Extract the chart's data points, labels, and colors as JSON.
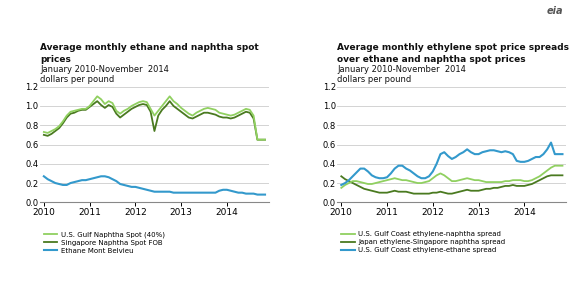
{
  "chart1": {
    "title1": "Average monthly ethane and naphtha spot",
    "title2": "prices",
    "subtitle": "January 2010-November  2014",
    "ylabel": "dollars per pound",
    "ylim": [
      0.0,
      1.2
    ],
    "yticks": [
      0.0,
      0.2,
      0.4,
      0.6,
      0.8,
      1.0,
      1.2
    ],
    "series": {
      "us_naphtha": {
        "label": "U.S. Gulf Naphtha Spot (40%)",
        "color": "#90d060",
        "lw": 1.3
      },
      "sing_naphtha": {
        "label": "Singapore Naphtha Spot FOB",
        "color": "#4a7a20",
        "lw": 1.3
      },
      "ethane": {
        "label": "Ethane Mont Belvieu",
        "color": "#3399cc",
        "lw": 1.5
      }
    }
  },
  "chart2": {
    "title1": "Average monthly ethylene spot price spreads",
    "title2": "over ethane and naphtha spot prices",
    "subtitle": "January 2010-November  2014",
    "ylabel": "dollars per pound",
    "ylim": [
      0.0,
      1.2
    ],
    "yticks": [
      0.0,
      0.2,
      0.4,
      0.6,
      0.8,
      1.0,
      1.2
    ],
    "series": {
      "us_naphtha_spread": {
        "label": "U.S. Gulf Coast ethylene-naphtha spread",
        "color": "#90d060",
        "lw": 1.3
      },
      "japan_spread": {
        "label": "Japan ethylene-Singapore naphtha spread",
        "color": "#4a7a20",
        "lw": 1.3
      },
      "us_ethane_spread": {
        "label": "U.S. Gulf Coast ethylene-ethane spread",
        "color": "#3399cc",
        "lw": 1.5
      }
    }
  },
  "background_color": "#ffffff",
  "grid_color": "#cccccc",
  "text_color": "#333333",
  "us_naph": [
    0.73,
    0.72,
    0.74,
    0.76,
    0.79,
    0.84,
    0.9,
    0.94,
    0.95,
    0.96,
    0.97,
    0.97,
    1.0,
    1.05,
    1.1,
    1.07,
    1.02,
    1.05,
    1.03,
    0.95,
    0.92,
    0.95,
    0.97,
    1.0,
    1.02,
    1.04,
    1.05,
    1.04,
    0.97,
    0.9,
    0.95,
    1.0,
    1.05,
    1.1,
    1.05,
    1.02,
    0.98,
    0.95,
    0.92,
    0.9,
    0.93,
    0.95,
    0.97,
    0.98,
    0.97,
    0.96,
    0.93,
    0.92,
    0.91,
    0.9,
    0.91,
    0.93,
    0.95,
    0.97,
    0.96,
    0.9,
    0.65,
    0.65,
    0.65
  ],
  "sing_naph": [
    0.7,
    0.69,
    0.71,
    0.74,
    0.77,
    0.82,
    0.88,
    0.92,
    0.93,
    0.95,
    0.96,
    0.96,
    0.99,
    1.02,
    1.05,
    1.01,
    0.98,
    1.01,
    0.99,
    0.92,
    0.88,
    0.91,
    0.94,
    0.97,
    0.99,
    1.01,
    1.02,
    1.01,
    0.94,
    0.74,
    0.9,
    0.96,
    1.0,
    1.05,
    1.0,
    0.97,
    0.94,
    0.91,
    0.88,
    0.87,
    0.89,
    0.91,
    0.93,
    0.93,
    0.92,
    0.91,
    0.89,
    0.88,
    0.88,
    0.87,
    0.88,
    0.9,
    0.92,
    0.94,
    0.93,
    0.87,
    0.65,
    0.65,
    0.65
  ],
  "ethane": [
    0.27,
    0.24,
    0.22,
    0.2,
    0.19,
    0.18,
    0.18,
    0.2,
    0.21,
    0.22,
    0.23,
    0.23,
    0.24,
    0.25,
    0.26,
    0.27,
    0.27,
    0.26,
    0.24,
    0.22,
    0.19,
    0.18,
    0.17,
    0.16,
    0.16,
    0.15,
    0.14,
    0.13,
    0.12,
    0.11,
    0.11,
    0.11,
    0.11,
    0.11,
    0.1,
    0.1,
    0.1,
    0.1,
    0.1,
    0.1,
    0.1,
    0.1,
    0.1,
    0.1,
    0.1,
    0.1,
    0.12,
    0.13,
    0.13,
    0.12,
    0.11,
    0.1,
    0.1,
    0.09,
    0.09,
    0.09,
    0.08,
    0.08,
    0.08
  ],
  "us_naph_sp": [
    0.15,
    0.18,
    0.2,
    0.22,
    0.22,
    0.21,
    0.2,
    0.19,
    0.19,
    0.2,
    0.21,
    0.22,
    0.23,
    0.24,
    0.25,
    0.24,
    0.23,
    0.23,
    0.22,
    0.21,
    0.2,
    0.2,
    0.21,
    0.22,
    0.25,
    0.28,
    0.3,
    0.28,
    0.25,
    0.22,
    0.22,
    0.23,
    0.24,
    0.25,
    0.24,
    0.23,
    0.23,
    0.22,
    0.21,
    0.21,
    0.21,
    0.21,
    0.21,
    0.22,
    0.22,
    0.23,
    0.23,
    0.23,
    0.22,
    0.22,
    0.23,
    0.25,
    0.27,
    0.3,
    0.33,
    0.36,
    0.38,
    0.38,
    0.38
  ],
  "japan_sp": [
    0.27,
    0.24,
    0.22,
    0.2,
    0.18,
    0.16,
    0.14,
    0.13,
    0.12,
    0.11,
    0.1,
    0.1,
    0.1,
    0.11,
    0.12,
    0.11,
    0.11,
    0.11,
    0.1,
    0.09,
    0.09,
    0.09,
    0.09,
    0.09,
    0.1,
    0.1,
    0.11,
    0.1,
    0.09,
    0.09,
    0.1,
    0.11,
    0.12,
    0.13,
    0.12,
    0.12,
    0.12,
    0.13,
    0.14,
    0.14,
    0.15,
    0.15,
    0.16,
    0.17,
    0.17,
    0.18,
    0.17,
    0.17,
    0.17,
    0.18,
    0.19,
    0.21,
    0.23,
    0.25,
    0.27,
    0.28,
    0.28,
    0.28,
    0.28
  ],
  "us_eth_sp": [
    0.18,
    0.2,
    0.23,
    0.27,
    0.31,
    0.35,
    0.35,
    0.32,
    0.28,
    0.26,
    0.25,
    0.25,
    0.26,
    0.3,
    0.35,
    0.38,
    0.38,
    0.35,
    0.33,
    0.3,
    0.27,
    0.25,
    0.25,
    0.27,
    0.32,
    0.4,
    0.5,
    0.52,
    0.48,
    0.45,
    0.47,
    0.5,
    0.52,
    0.55,
    0.52,
    0.5,
    0.5,
    0.52,
    0.53,
    0.54,
    0.54,
    0.53,
    0.52,
    0.53,
    0.52,
    0.5,
    0.43,
    0.42,
    0.42,
    0.43,
    0.45,
    0.47,
    0.47,
    0.5,
    0.55,
    0.62,
    0.5,
    0.5,
    0.5
  ],
  "xtick_labels": [
    "2010",
    "2011",
    "2012",
    "2013",
    "2014"
  ],
  "xtick_positions": [
    0,
    12,
    24,
    36,
    48
  ]
}
